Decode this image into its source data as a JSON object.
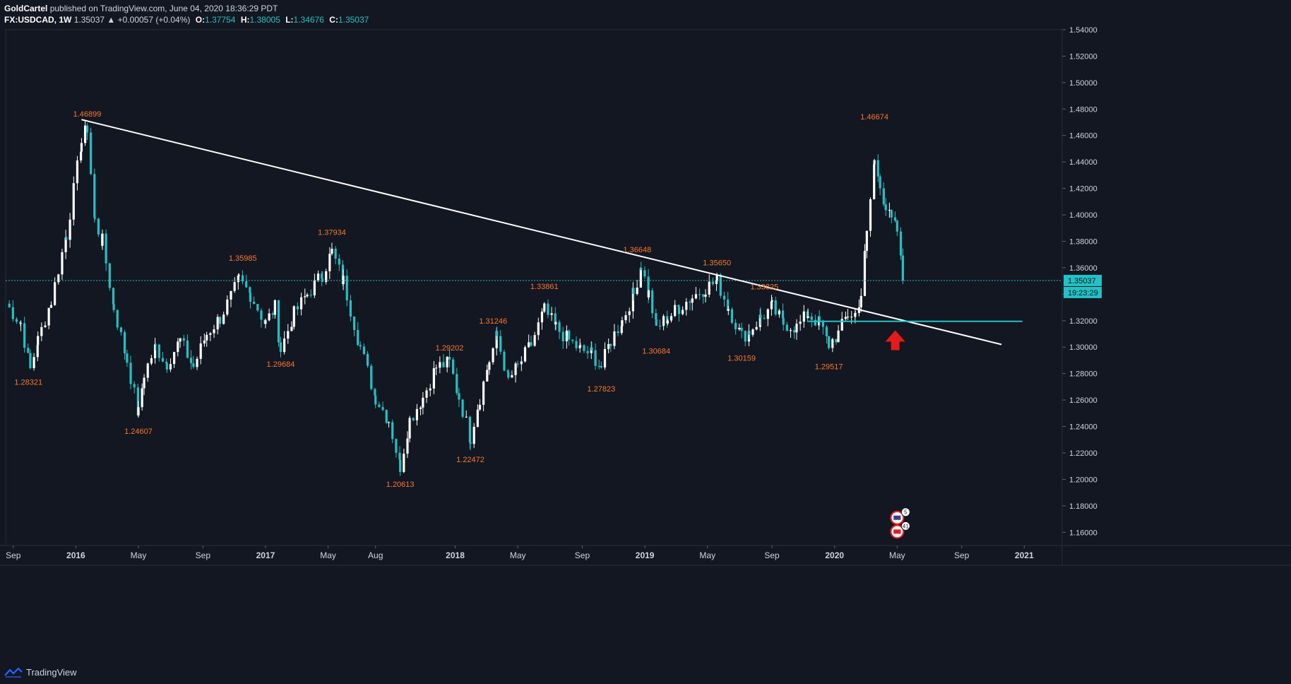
{
  "header": {
    "author": "GoldCartel",
    "published_text": "published on TradingView.com, June 04, 2020 18:36:29 PDT",
    "symbol": "FX:USDCAD",
    "timeframe": "1W",
    "last_price": "1.35037",
    "change": "▲ +0.00057 (+0.04%)",
    "open_label": "O:",
    "open": "1.37754",
    "high_label": "H:",
    "high": "1.38005",
    "low_label": "L:",
    "low": "1.34676",
    "close_label": "C:",
    "close": "1.35037"
  },
  "footer": {
    "brand": "TradingView"
  },
  "colors": {
    "background": "#131722",
    "bull": "#ffffff",
    "bear": "#22c1c3",
    "label": "#f7782b",
    "trendline": "#ffffff",
    "support": "#22c1c3",
    "arrow": "#e51a1a"
  },
  "chart_data": {
    "type": "candlestick",
    "title": "FX:USDCAD, 1W",
    "ylim": [
      1.15,
      1.54
    ],
    "y_ticks": [
      "1.16000",
      "1.18000",
      "1.20000",
      "1.22000",
      "1.24000",
      "1.26000",
      "1.28000",
      "1.30000",
      "1.32000",
      "1.34000",
      "1.36000",
      "1.38000",
      "1.40000",
      "1.42000",
      "1.44000",
      "1.46000",
      "1.48000",
      "1.50000",
      "1.52000",
      "1.54000"
    ],
    "x_ticks": [
      {
        "label": "Sep",
        "t": 2015.67
      },
      {
        "label": "2016",
        "t": 2016.0
      },
      {
        "label": "May",
        "t": 2016.33
      },
      {
        "label": "Sep",
        "t": 2016.67
      },
      {
        "label": "2017",
        "t": 2017.0
      },
      {
        "label": "May",
        "t": 2017.33
      },
      {
        "label": "Aug",
        "t": 2017.58
      },
      {
        "label": "2018",
        "t": 2018.0
      },
      {
        "label": "May",
        "t": 2018.33
      },
      {
        "label": "Sep",
        "t": 2018.67
      },
      {
        "label": "2019",
        "t": 2019.0
      },
      {
        "label": "May",
        "t": 2019.33
      },
      {
        "label": "Sep",
        "t": 2019.67
      },
      {
        "label": "2020",
        "t": 2020.0
      },
      {
        "label": "May",
        "t": 2020.33
      },
      {
        "label": "Sep",
        "t": 2020.67
      },
      {
        "label": "2021",
        "t": 2021.0
      }
    ],
    "x_range": [
      2015.63,
      2021.2
    ],
    "last_price": 1.35037,
    "last_price_label": "1.35037",
    "countdown_label": "19:23:29",
    "swing_labels": [
      {
        "text": "1.28321",
        "t": 2015.75,
        "price": 1.28321,
        "pos": "below"
      },
      {
        "text": "1.46899",
        "t": 2016.06,
        "price": 1.46899,
        "pos": "above"
      },
      {
        "text": "1.24607",
        "t": 2016.33,
        "price": 1.24607,
        "pos": "below"
      },
      {
        "text": "1.35985",
        "t": 2016.88,
        "price": 1.35985,
        "pos": "above"
      },
      {
        "text": "1.29684",
        "t": 2017.08,
        "price": 1.29684,
        "pos": "below"
      },
      {
        "text": "1.37934",
        "t": 2017.35,
        "price": 1.37934,
        "pos": "above"
      },
      {
        "text": "1.20613",
        "t": 2017.71,
        "price": 1.20613,
        "pos": "below"
      },
      {
        "text": "1.29202",
        "t": 2017.97,
        "price": 1.29202,
        "pos": "above"
      },
      {
        "text": "1.22472",
        "t": 2018.08,
        "price": 1.22472,
        "pos": "below"
      },
      {
        "text": "1.31246",
        "t": 2018.2,
        "price": 1.31246,
        "pos": "above"
      },
      {
        "text": "1.33861",
        "t": 2018.47,
        "price": 1.33861,
        "pos": "above"
      },
      {
        "text": "1.27823",
        "t": 2018.77,
        "price": 1.27823,
        "pos": "below"
      },
      {
        "text": "1.36648",
        "t": 2018.96,
        "price": 1.36648,
        "pos": "above"
      },
      {
        "text": "1.30684",
        "t": 2019.06,
        "price": 1.30684,
        "pos": "below"
      },
      {
        "text": "1.35650",
        "t": 2019.38,
        "price": 1.3565,
        "pos": "above"
      },
      {
        "text": "1.30159",
        "t": 2019.51,
        "price": 1.30159,
        "pos": "below"
      },
      {
        "text": "1.33825",
        "t": 2019.63,
        "price": 1.33825,
        "pos": "above"
      },
      {
        "text": "1.29517",
        "t": 2019.97,
        "price": 1.29517,
        "pos": "below"
      },
      {
        "text": "1.46674",
        "t": 2020.21,
        "price": 1.46674,
        "pos": "above"
      }
    ],
    "trendline": {
      "t1": 2016.03,
      "p1": 1.472,
      "t2": 2020.88,
      "p2": 1.302
    },
    "support_line": {
      "t1": 2019.86,
      "t2": 2020.99,
      "price": 1.3195
    },
    "arrow": {
      "t": 2020.32,
      "price": 1.302
    },
    "event_markers": [
      {
        "t": 2020.33,
        "price": 1.171,
        "count": "5"
      },
      {
        "t": 2020.33,
        "price": 1.1605,
        "count": "41"
      }
    ],
    "anchors": [
      [
        2015.63,
        1.333
      ],
      [
        2015.71,
        1.318
      ],
      [
        2015.76,
        1.283
      ],
      [
        2015.8,
        1.305
      ],
      [
        2015.87,
        1.335
      ],
      [
        2015.95,
        1.385
      ],
      [
        2016.03,
        1.455
      ],
      [
        2016.06,
        1.466
      ],
      [
        2016.1,
        1.395
      ],
      [
        2016.14,
        1.38
      ],
      [
        2016.2,
        1.33
      ],
      [
        2016.27,
        1.29
      ],
      [
        2016.33,
        1.25
      ],
      [
        2016.36,
        1.28
      ],
      [
        2016.42,
        1.3
      ],
      [
        2016.48,
        1.288
      ],
      [
        2016.55,
        1.305
      ],
      [
        2016.62,
        1.285
      ],
      [
        2016.69,
        1.31
      ],
      [
        2016.76,
        1.322
      ],
      [
        2016.86,
        1.35
      ],
      [
        2016.92,
        1.34
      ],
      [
        2017.0,
        1.318
      ],
      [
        2017.05,
        1.33
      ],
      [
        2017.08,
        1.298
      ],
      [
        2017.15,
        1.325
      ],
      [
        2017.22,
        1.34
      ],
      [
        2017.3,
        1.355
      ],
      [
        2017.35,
        1.372
      ],
      [
        2017.41,
        1.35
      ],
      [
        2017.5,
        1.3
      ],
      [
        2017.58,
        1.262
      ],
      [
        2017.65,
        1.245
      ],
      [
        2017.71,
        1.21
      ],
      [
        2017.76,
        1.245
      ],
      [
        2017.83,
        1.262
      ],
      [
        2017.9,
        1.285
      ],
      [
        2017.97,
        1.288
      ],
      [
        2018.02,
        1.262
      ],
      [
        2018.08,
        1.232
      ],
      [
        2018.13,
        1.262
      ],
      [
        2018.18,
        1.29
      ],
      [
        2018.22,
        1.308
      ],
      [
        2018.28,
        1.275
      ],
      [
        2018.33,
        1.285
      ],
      [
        2018.4,
        1.302
      ],
      [
        2018.47,
        1.328
      ],
      [
        2018.53,
        1.315
      ],
      [
        2018.6,
        1.305
      ],
      [
        2018.66,
        1.298
      ],
      [
        2018.72,
        1.295
      ],
      [
        2018.77,
        1.285
      ],
      [
        2018.82,
        1.305
      ],
      [
        2018.88,
        1.32
      ],
      [
        2018.94,
        1.34
      ],
      [
        2018.98,
        1.362
      ],
      [
        2019.02,
        1.34
      ],
      [
        2019.06,
        1.315
      ],
      [
        2019.12,
        1.322
      ],
      [
        2019.18,
        1.33
      ],
      [
        2019.25,
        1.338
      ],
      [
        2019.32,
        1.345
      ],
      [
        2019.38,
        1.35
      ],
      [
        2019.44,
        1.33
      ],
      [
        2019.51,
        1.308
      ],
      [
        2019.55,
        1.312
      ],
      [
        2019.61,
        1.322
      ],
      [
        2019.67,
        1.33
      ],
      [
        2019.73,
        1.318
      ],
      [
        2019.8,
        1.315
      ],
      [
        2019.86,
        1.325
      ],
      [
        2019.92,
        1.318
      ],
      [
        2019.97,
        1.302
      ],
      [
        2020.02,
        1.31
      ],
      [
        2020.07,
        1.325
      ],
      [
        2020.11,
        1.325
      ],
      [
        2020.14,
        1.34
      ],
      [
        2020.17,
        1.385
      ],
      [
        2020.21,
        1.44
      ],
      [
        2020.24,
        1.425
      ],
      [
        2020.27,
        1.405
      ],
      [
        2020.3,
        1.395
      ],
      [
        2020.33,
        1.388
      ],
      [
        2020.36,
        1.352
      ]
    ]
  }
}
